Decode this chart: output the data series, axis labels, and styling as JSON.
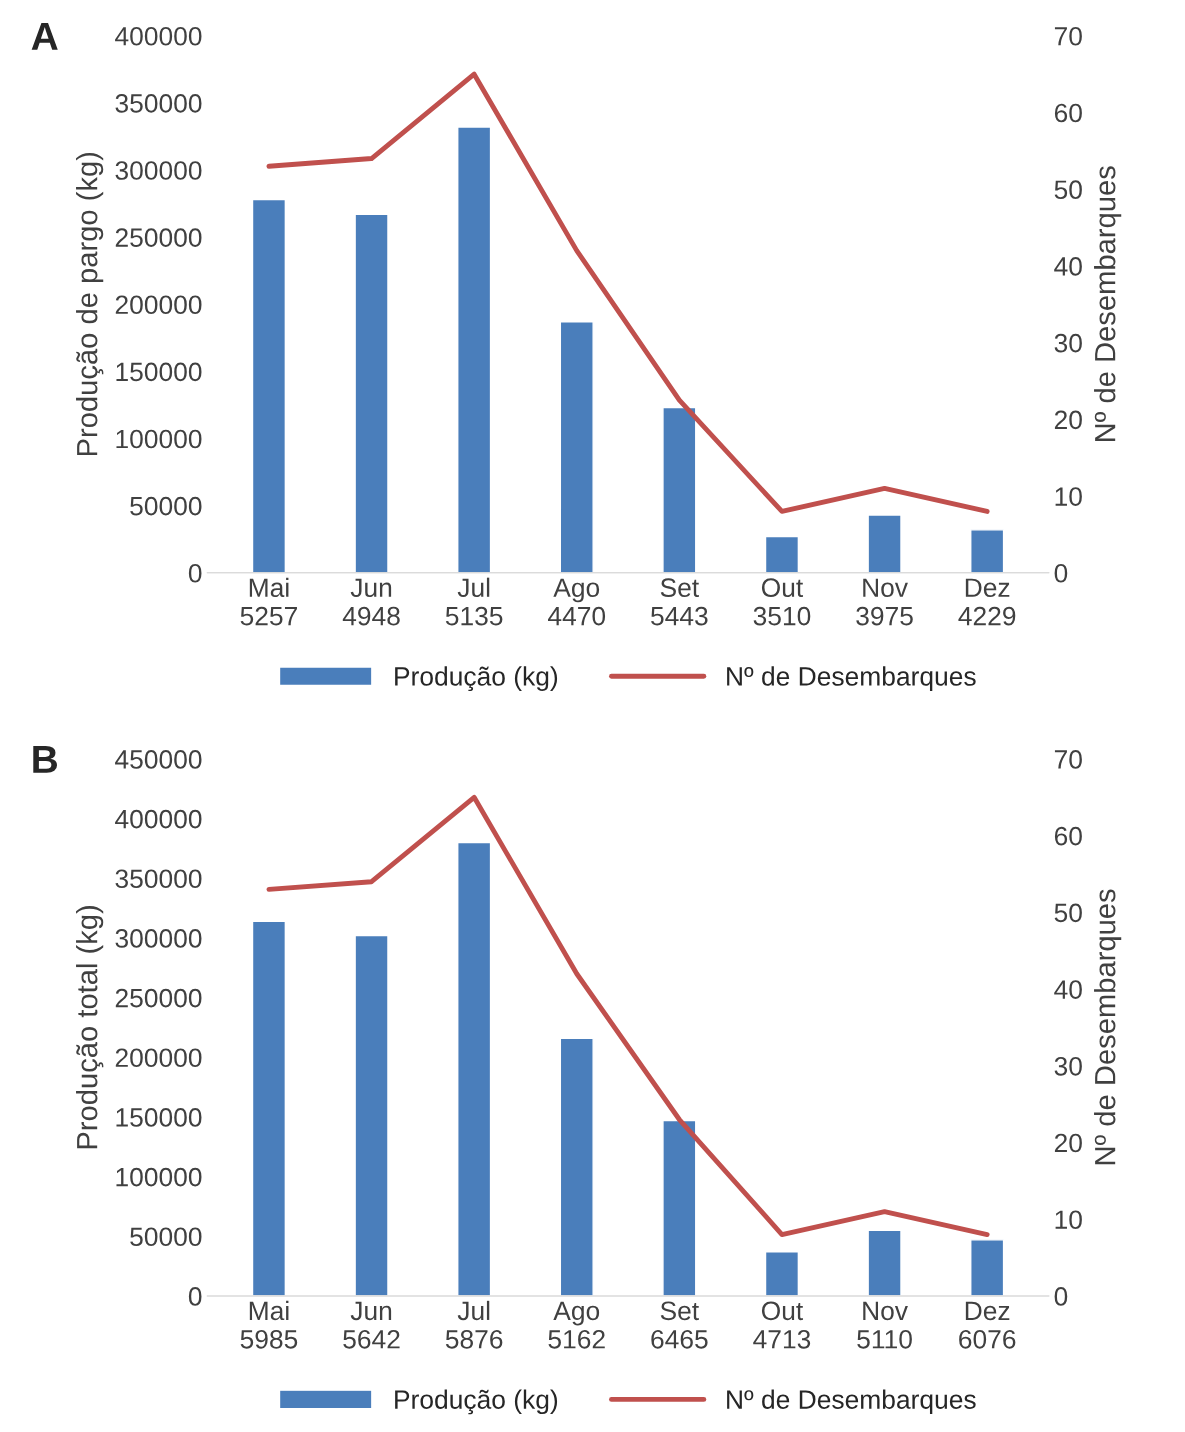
{
  "chart_data": [
    {
      "type": "bar",
      "title": "A",
      "ylabel": "Produção de pargo (kg)",
      "y2label": "Nº de Desembarques",
      "categories": [
        "Mai\n5257",
        "Jun\n4948",
        "Jul\n5135",
        "Ago\n4470",
        "Set\n5443",
        "Out\n3510",
        "Nov\n3975",
        "Dez\n4229"
      ],
      "series": [
        {
          "name": "Produção (kg)",
          "color": "#4a7ebb",
          "values": [
            278000,
            267000,
            332000,
            187000,
            123000,
            27000,
            43000,
            32000
          ]
        },
        {
          "name": "Nº de Desembarques",
          "type": "line",
          "axis": "y2",
          "color": "#c0504d",
          "values": [
            53,
            54,
            65,
            42,
            22.5,
            8,
            11,
            8
          ]
        }
      ],
      "ylim": [
        0,
        400000
      ],
      "yticks": [
        0,
        50000,
        100000,
        150000,
        200000,
        250000,
        300000,
        350000,
        400000
      ],
      "y2lim": [
        0,
        70
      ],
      "y2ticks": [
        0,
        10,
        20,
        30,
        40,
        50,
        60,
        70
      ],
      "grid": false,
      "legend": "bottom",
      "marker": "none",
      "line_style": "solid"
    },
    {
      "type": "bar",
      "title": "B",
      "ylabel": "Produção total (kg)",
      "y2label": "Nº de Desembarques",
      "categories": [
        "Mai\n5985",
        "Jun\n5642",
        "Jul\n5876",
        "Ago\n5162",
        "Set\n6465",
        "Out\n4713",
        "Nov\n5110",
        "Dez\n6076"
      ],
      "series": [
        {
          "name": "Produção (kg)",
          "color": "#4a7ebb",
          "values": [
            314000,
            302000,
            380000,
            216000,
            147000,
            37000,
            55000,
            47000
          ]
        },
        {
          "name": "Nº de Desembarques",
          "type": "line",
          "axis": "y2",
          "color": "#c0504d",
          "values": [
            53,
            54,
            65,
            42,
            23,
            8,
            11,
            8
          ]
        }
      ],
      "ylim": [
        0,
        450000
      ],
      "yticks": [
        0,
        50000,
        100000,
        150000,
        200000,
        250000,
        300000,
        350000,
        400000,
        450000
      ],
      "y2lim": [
        0,
        70
      ],
      "y2ticks": [
        0,
        10,
        20,
        30,
        40,
        50,
        60,
        70
      ],
      "grid": false,
      "legend": "bottom",
      "marker": "none",
      "line_style": "solid"
    }
  ]
}
